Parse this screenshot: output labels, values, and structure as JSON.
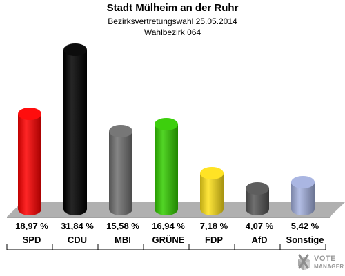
{
  "header": {
    "title": "Stadt Mülheim an der Ruhr",
    "subtitle": "Bezirksvertretungswahl 25.05.2014",
    "district": "Wahlbezirk 064"
  },
  "chart_data": {
    "type": "bar",
    "categories": [
      "SPD",
      "CDU",
      "MBI",
      "GRÜNE",
      "FDP",
      "AfD",
      "Sonstige"
    ],
    "values": [
      18.97,
      31.84,
      15.58,
      16.94,
      7.18,
      4.07,
      5.42
    ],
    "value_labels": [
      "18,97 %",
      "31,84 %",
      "15,58 %",
      "16,94 %",
      "7,18 %",
      "4,07 %",
      "5,42 %"
    ],
    "colors": [
      "#ff0000",
      "#000000",
      "#707070",
      "#33cc00",
      "#ffe21a",
      "#555555",
      "#a5b2e0"
    ],
    "ylim": [
      0,
      31.84
    ],
    "grid": false,
    "legend": "none"
  },
  "logo": {
    "line1": "VOTE",
    "line2": "MANAGER",
    "icon": "ballot-cross-icon"
  }
}
